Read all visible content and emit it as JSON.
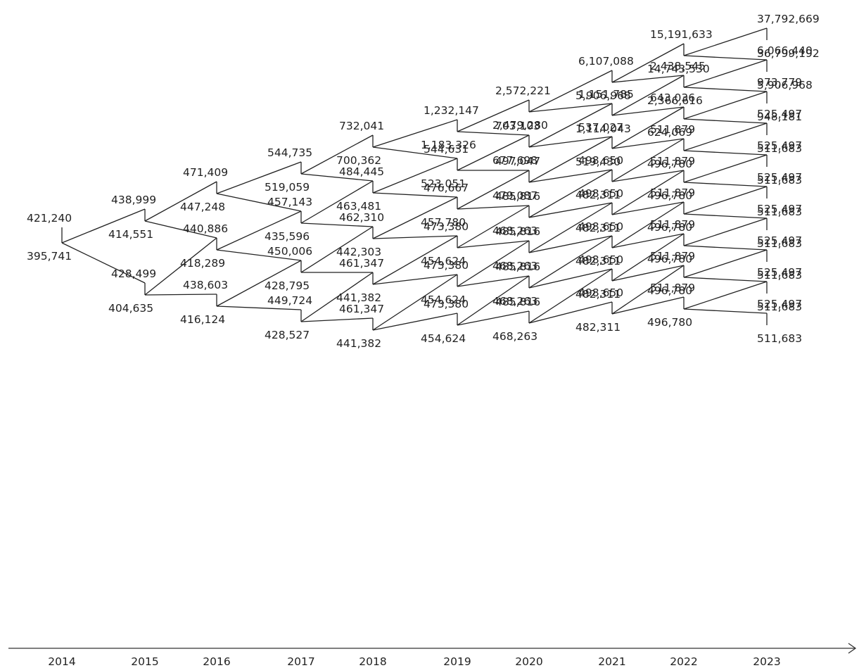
{
  "years": [
    "2014",
    "2015",
    "2016",
    "2017",
    "2018",
    "2019",
    "2020",
    "2021",
    "2022",
    "2023"
  ],
  "labels": {
    "c0": [
      "421,240",
      "395,741"
    ],
    "c1": [
      "438,999",
      "414,551",
      "428,499",
      "404,635"
    ],
    "c2": [
      "471,409",
      "447,248",
      "440,886",
      "418,289",
      "438,603",
      "416,124"
    ],
    "c3": [
      "544,735",
      "519,059",
      "457,143",
      "435,596",
      "450,006",
      "428,795",
      "449,724",
      "428,527"
    ],
    "c4": [
      "732,041",
      "700,362",
      "484,445",
      "463,481",
      "462,310",
      "442,303",
      "461,347",
      "441,382",
      "461,347",
      "441,382"
    ],
    "c5": [
      "1,232,147",
      "1,183,326",
      "544,631",
      "523,051",
      "476,667",
      "457,780",
      "473,380",
      "454,624",
      "473,380",
      "454,624",
      "473,380",
      "454,624"
    ],
    "c6": [
      "2,572,221",
      "2,479,280",
      "703,103",
      "677,698",
      "497,047",
      "479,087",
      "485,816",
      "468,263",
      "485,816",
      "468,263",
      "485,816",
      "468,263",
      "485,816",
      "468,263"
    ],
    "c7": [
      "6,107,088",
      "5,906,968",
      "1,151,785",
      "1,114,043",
      "537,027",
      "519,430",
      "498,650",
      "482,311",
      "498,650",
      "482,311",
      "498,650",
      "482,311",
      "498,650",
      "482,311",
      "498,650",
      "482,311"
    ],
    "c8": [
      "15,191,633",
      "14,743,530",
      "2,438,545",
      "2,366,616",
      "643,036",
      "624,069",
      "511,879",
      "496,780",
      "511,879",
      "496,780",
      "511,879",
      "496,780",
      "511,879",
      "496,780",
      "511,879",
      "496,780",
      "511,879",
      "496,780"
    ],
    "c9": [
      "37,792,669",
      "36,799,192",
      "6,066,440",
      "5,906,968",
      "973,779",
      "948,181",
      "525,497",
      "511,683",
      "525,497",
      "511,683",
      "525,497",
      "511,683",
      "525,497",
      "511,683",
      "525,497",
      "511,683",
      "525,497",
      "511,683",
      "525,497",
      "511,683"
    ]
  }
}
